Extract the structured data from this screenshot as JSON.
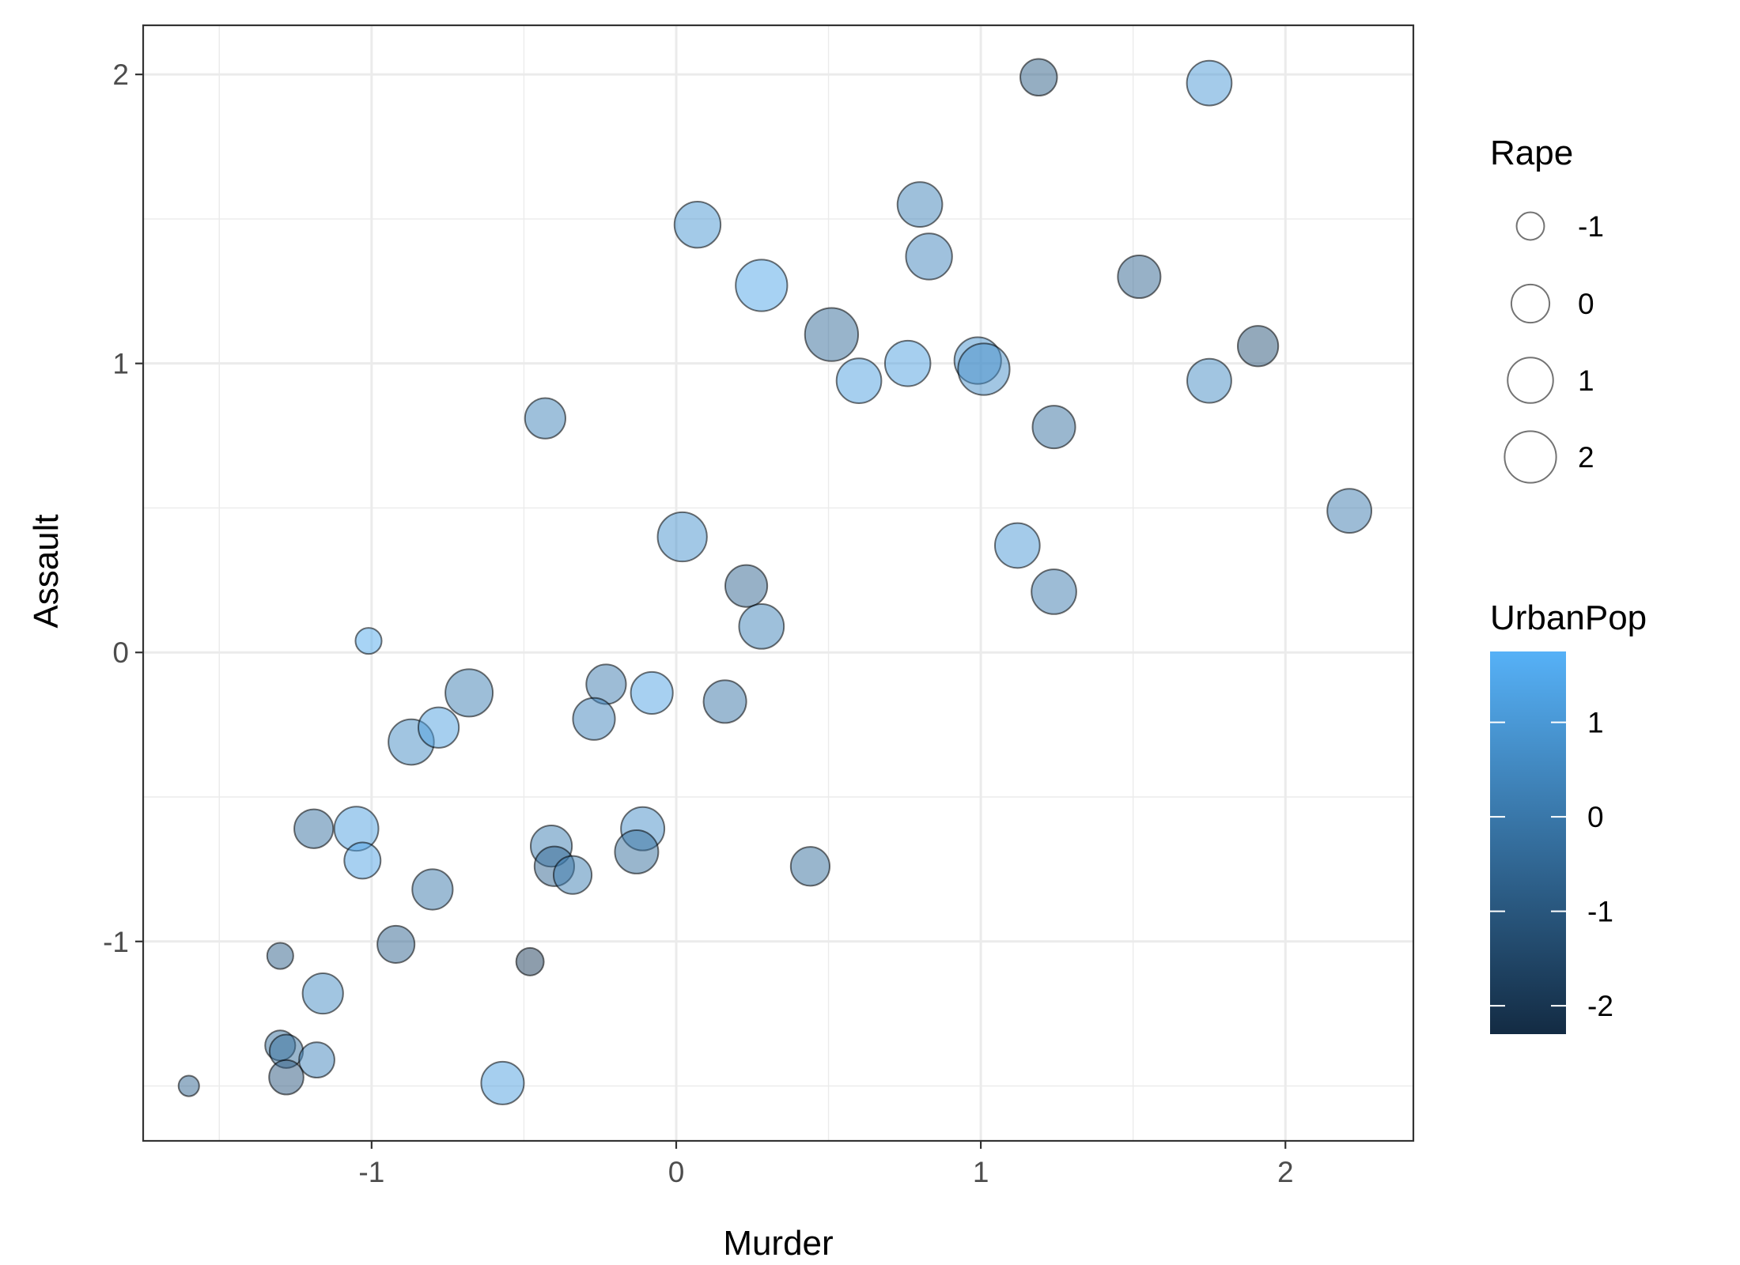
{
  "chart_data": {
    "type": "scatter",
    "title": "",
    "xlabel": "Murder",
    "ylabel": "Assault",
    "xlim": [
      -1.75,
      2.42
    ],
    "ylim": [
      -1.69,
      2.17
    ],
    "x_ticks": [
      -1,
      0,
      1,
      2
    ],
    "y_ticks": [
      -1,
      0,
      1,
      2
    ],
    "x_tick_labels": [
      "-1",
      "0",
      "1",
      "2"
    ],
    "y_tick_labels": [
      "-1",
      "0",
      "1",
      "2"
    ],
    "grid": true,
    "legend_position": "right",
    "size_legend": {
      "title": "Rape",
      "values": [
        -1,
        0,
        1,
        2
      ],
      "labels": [
        "-1",
        "0",
        "1",
        "2"
      ]
    },
    "color_legend": {
      "title": "UrbanPop",
      "values": [
        1,
        0,
        -1,
        -2
      ],
      "labels": [
        "1",
        "0",
        "-1",
        "-2"
      ],
      "range": [
        -2.3,
        1.75
      ],
      "low_color": "#132b43",
      "high_color": "#56b1f7"
    },
    "points": [
      {
        "x": 1.19,
        "y": 1.99,
        "size": -0.15,
        "color": -0.8
      },
      {
        "x": 1.75,
        "y": 1.97,
        "size": 0.9,
        "color": 1.0
      },
      {
        "x": 0.07,
        "y": 1.48,
        "size": 1.1,
        "color": 0.9
      },
      {
        "x": 0.8,
        "y": 1.55,
        "size": 0.9,
        "color": 0.3
      },
      {
        "x": 0.83,
        "y": 1.37,
        "size": 1.1,
        "color": 0.4
      },
      {
        "x": 0.28,
        "y": 1.27,
        "size": 2.0,
        "color": 1.4
      },
      {
        "x": 1.52,
        "y": 1.3,
        "size": 0.6,
        "color": -0.6
      },
      {
        "x": 0.51,
        "y": 1.1,
        "size": 2.3,
        "color": -0.4
      },
      {
        "x": 1.91,
        "y": 1.06,
        "size": 0.3,
        "color": -1.1
      },
      {
        "x": 0.76,
        "y": 1.0,
        "size": 1.0,
        "color": 1.2
      },
      {
        "x": 0.99,
        "y": 1.01,
        "size": 1.2,
        "color": 0.8
      },
      {
        "x": 1.01,
        "y": 0.98,
        "size": 2.0,
        "color": 0.7
      },
      {
        "x": 0.6,
        "y": 0.94,
        "size": 0.9,
        "color": 1.2
      },
      {
        "x": 1.75,
        "y": 0.94,
        "size": 0.8,
        "color": 0.6
      },
      {
        "x": 1.24,
        "y": 0.78,
        "size": 0.6,
        "color": -0.2
      },
      {
        "x": -0.43,
        "y": 0.81,
        "size": 0.3,
        "color": 0.3
      },
      {
        "x": 2.21,
        "y": 0.49,
        "size": 0.8,
        "color": 0.1
      },
      {
        "x": 0.02,
        "y": 0.4,
        "size": 1.6,
        "color": 0.8
      },
      {
        "x": 1.12,
        "y": 0.37,
        "size": 0.9,
        "color": 1.0
      },
      {
        "x": 0.23,
        "y": 0.23,
        "size": 0.5,
        "color": -0.6
      },
      {
        "x": 1.24,
        "y": 0.21,
        "size": 0.9,
        "color": 0.1
      },
      {
        "x": 0.28,
        "y": 0.09,
        "size": 0.9,
        "color": 0.3
      },
      {
        "x": -1.01,
        "y": 0.04,
        "size": -1.1,
        "color": 1.5
      },
      {
        "x": -0.68,
        "y": -0.14,
        "size": 1.3,
        "color": 0.2
      },
      {
        "x": -0.23,
        "y": -0.11,
        "size": 0.2,
        "color": 0.1
      },
      {
        "x": -0.08,
        "y": -0.14,
        "size": 0.5,
        "color": 1.3
      },
      {
        "x": 0.16,
        "y": -0.17,
        "size": 0.6,
        "color": -0.1
      },
      {
        "x": -0.27,
        "y": -0.23,
        "size": 0.5,
        "color": 0.4
      },
      {
        "x": -0.87,
        "y": -0.31,
        "size": 1.0,
        "color": 0.6
      },
      {
        "x": -0.78,
        "y": -0.26,
        "size": 0.3,
        "color": 1.2
      },
      {
        "x": -1.19,
        "y": -0.61,
        "size": 0.1,
        "color": -0.2
      },
      {
        "x": -1.05,
        "y": -0.61,
        "size": 0.8,
        "color": 1.2
      },
      {
        "x": -0.11,
        "y": -0.61,
        "size": 0.7,
        "color": 0.7
      },
      {
        "x": -0.41,
        "y": -0.67,
        "size": 0.4,
        "color": 0.2
      },
      {
        "x": -0.13,
        "y": -0.69,
        "size": 0.7,
        "color": -0.3
      },
      {
        "x": -1.03,
        "y": -0.72,
        "size": -0.2,
        "color": 1.3
      },
      {
        "x": -0.4,
        "y": -0.74,
        "size": 0.2,
        "color": -0.6
      },
      {
        "x": 0.44,
        "y": -0.74,
        "size": 0.1,
        "color": -0.3
      },
      {
        "x": -0.34,
        "y": -0.77,
        "size": 0.0,
        "color": 0.2
      },
      {
        "x": -0.8,
        "y": -0.82,
        "size": 0.3,
        "color": 0.0
      },
      {
        "x": -0.92,
        "y": -1.01,
        "size": -0.1,
        "color": -0.6
      },
      {
        "x": -1.3,
        "y": -1.05,
        "size": -1.1,
        "color": -0.7
      },
      {
        "x": -0.48,
        "y": -1.07,
        "size": -1.0,
        "color": -1.8
      },
      {
        "x": -1.16,
        "y": -1.18,
        "size": 0.3,
        "color": 0.6
      },
      {
        "x": -1.3,
        "y": -1.36,
        "size": -0.8,
        "color": -0.3
      },
      {
        "x": -1.28,
        "y": -1.38,
        "size": -0.5,
        "color": -0.3
      },
      {
        "x": -1.18,
        "y": -1.41,
        "size": -0.3,
        "color": 0.4
      },
      {
        "x": -1.28,
        "y": -1.47,
        "size": -0.4,
        "color": -1.0
      },
      {
        "x": -0.57,
        "y": -1.49,
        "size": 0.6,
        "color": 1.2
      },
      {
        "x": -1.6,
        "y": -1.5,
        "size": -1.4,
        "color": -0.6
      }
    ]
  }
}
